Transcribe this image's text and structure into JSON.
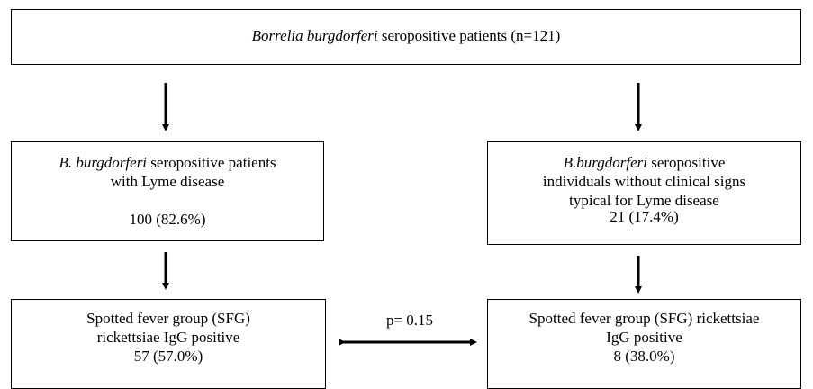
{
  "nodes": [
    {
      "italic": "Borrelia burgdorferi",
      "text": "seropositive patients (n=121)"
    },
    {
      "italic": "B. burgdorferi",
      "lines": [
        "seropositive patients",
        "with Lyme disease",
        "100 (82.6%)"
      ]
    },
    {
      "italic": "B.burgdorferi",
      "lines": [
        "seropositive",
        "individuals without clinical signs",
        "typical for Lyme disease",
        "21 (17.4%)"
      ]
    },
    {
      "lines": [
        "Spotted fever group (SFG)",
        "rickettsiae IgG positive",
        "57 (57.0%)"
      ]
    },
    {
      "lines": [
        "Spotted fever group (SFG) rickettsiae",
        "IgG positive",
        "8 (38.0%)"
      ]
    }
  ],
  "comparison": {
    "label": "p= 0.15"
  }
}
